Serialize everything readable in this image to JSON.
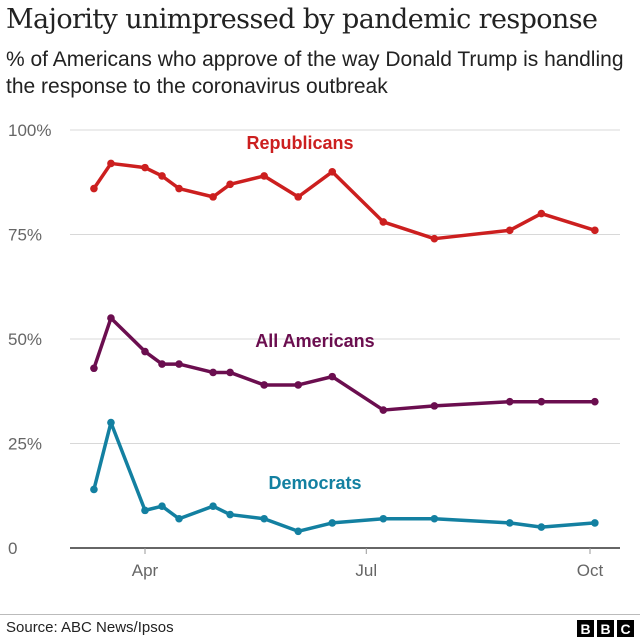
{
  "chart_data": {
    "type": "line",
    "title": "Majority unimpressed by pandemic response",
    "subtitle": "% of Americans who approve of the way Donald Trump is handling the response to the coronavirus outbreak",
    "xlabel": "",
    "ylabel": "",
    "ylim": [
      0,
      100
    ],
    "y_ticks": [
      0,
      25,
      50,
      75,
      100
    ],
    "y_tick_labels": [
      "0",
      "25%",
      "50%",
      "75%",
      "100%"
    ],
    "x_ticks": [
      "2020-04-01",
      "2020-07-01",
      "2020-10-01"
    ],
    "x_tick_labels": [
      "Apr",
      "Jul",
      "Oct"
    ],
    "grid": true,
    "x": [
      "2020-03-11",
      "2020-03-18",
      "2020-04-01",
      "2020-04-08",
      "2020-04-15",
      "2020-04-29",
      "2020-05-06",
      "2020-05-20",
      "2020-06-03",
      "2020-06-17",
      "2020-07-08",
      "2020-07-29",
      "2020-08-29",
      "2020-09-11",
      "2020-10-03"
    ],
    "series": [
      {
        "name": "Republicans",
        "color": "#cc1f1f",
        "values": [
          86,
          92,
          91,
          89,
          86,
          84,
          87,
          89,
          84,
          90,
          78,
          74,
          76,
          80,
          76
        ]
      },
      {
        "name": "All Americans",
        "color": "#6b0e4f",
        "values": [
          43,
          55,
          47,
          44,
          44,
          42,
          42,
          39,
          39,
          41,
          33,
          34,
          35,
          35,
          35
        ]
      },
      {
        "name": "Democrats",
        "color": "#1380a1",
        "values": [
          14,
          30,
          9,
          10,
          7,
          10,
          8,
          7,
          4,
          6,
          7,
          7,
          6,
          5,
          6
        ]
      }
    ]
  },
  "source": "Source: ABC News/Ipsos",
  "logo": "BBC"
}
